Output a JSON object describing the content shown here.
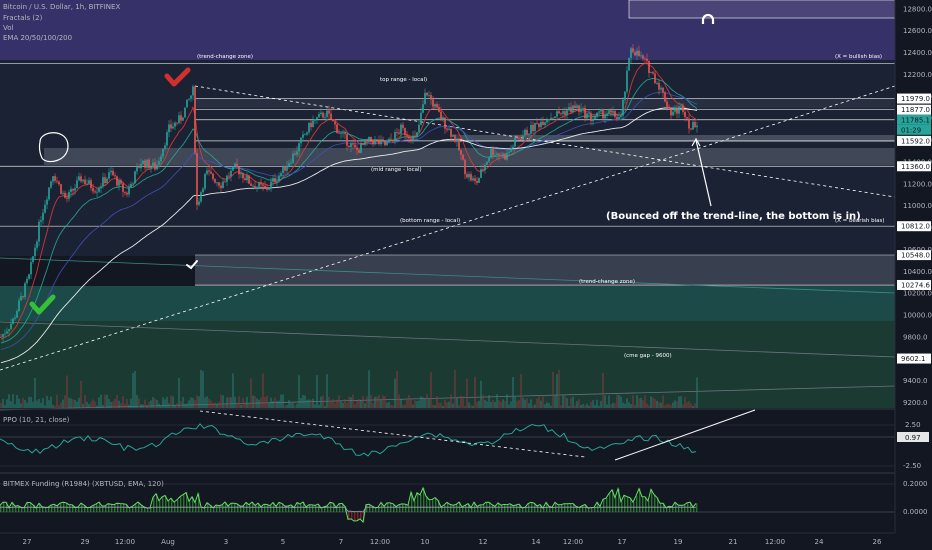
{
  "header": {
    "symbol": "Bitcoin / U.S. Dollar, 1h, BITFINEX",
    "indicators": [
      "Fractals (2)",
      "Vol",
      "EMA 20/50/100/200"
    ]
  },
  "colors": {
    "background": "#131722",
    "purple_zone": "#3a3468",
    "dark_zone": "#1c2233",
    "teal_zone": "#1d4a4a",
    "green_zone": "#1c3d33",
    "up_candle": "#26a69a",
    "down_candle": "#ef5350",
    "ema_red": "#e53935",
    "ema_teal": "#26a69a",
    "ema_blue": "#3f51b5",
    "ema_white": "#ffffff",
    "check_red": "#d32f2f",
    "check_green": "#35c035",
    "funding_line": "#4caf50"
  },
  "chart_data": [
    {
      "type": "candlestick",
      "title": "Bitcoin / U.S. Dollar, 1h, BITFINEX",
      "x_ticks": [
        "27",
        "29",
        "12:00",
        "Aug",
        "3",
        "5",
        "7",
        "12:00",
        "10",
        "12",
        "14",
        "12:00",
        "17",
        "19",
        "21",
        "12:00",
        "24",
        "26"
      ],
      "y_ticks": [
        9200,
        9400,
        9600,
        9800,
        10000,
        10200,
        10400,
        10600,
        10800,
        11000,
        11200,
        11400,
        11600,
        11800,
        12000,
        12200,
        12400,
        12600,
        12800
      ],
      "ylim": [
        9150,
        12880
      ],
      "price_tags": [
        {
          "label": "11979.0",
          "value": 11979
        },
        {
          "label": "11877.0",
          "value": 11877
        },
        {
          "label": "11785.1",
          "value": 11785.1,
          "current": true
        },
        {
          "label": "01:29",
          "value": 11700,
          "current": true
        },
        {
          "label": "11592.0",
          "value": 11592
        },
        {
          "label": "11360.0",
          "value": 11360
        },
        {
          "label": "10812.0",
          "value": 10812
        },
        {
          "label": "10548.0",
          "value": 10548
        },
        {
          "label": "10274.6",
          "value": 10274.6
        },
        {
          "label": "9602.1",
          "value": 9602.1
        }
      ],
      "levels": [
        12300,
        11979,
        11877,
        11785,
        11592,
        11360,
        10812,
        10548,
        10274
      ],
      "annotations": [
        {
          "text": "(trend-change zone)"
        },
        {
          "text": "(X = bullish bias)"
        },
        {
          "text": "top range - local)"
        },
        {
          "text": "(mid range - local)"
        },
        {
          "text": "(bottom range - local)"
        },
        {
          "text": "(X = bearish bias)"
        },
        {
          "text": "(trend-change zone)"
        },
        {
          "text": "(cme gap - 9600)"
        },
        {
          "text": "(Bounced off the trend-line, the bottom is in)"
        }
      ],
      "price_path": [
        {
          "t": 0,
          "p": 9800
        },
        {
          "t": 12,
          "p": 9950
        },
        {
          "t": 28,
          "p": 10350
        },
        {
          "t": 40,
          "p": 10900
        },
        {
          "t": 52,
          "p": 11300
        },
        {
          "t": 65,
          "p": 11050
        },
        {
          "t": 80,
          "p": 11250
        },
        {
          "t": 95,
          "p": 11150
        },
        {
          "t": 110,
          "p": 11300
        },
        {
          "t": 125,
          "p": 11100
        },
        {
          "t": 140,
          "p": 11400
        },
        {
          "t": 155,
          "p": 11350
        },
        {
          "t": 168,
          "p": 11700
        },
        {
          "t": 180,
          "p": 11800
        },
        {
          "t": 192,
          "p": 12050
        },
        {
          "t": 196,
          "p": 11000
        },
        {
          "t": 205,
          "p": 11300
        },
        {
          "t": 220,
          "p": 11200
        },
        {
          "t": 235,
          "p": 11350
        },
        {
          "t": 250,
          "p": 11200
        },
        {
          "t": 265,
          "p": 11150
        },
        {
          "t": 280,
          "p": 11300
        },
        {
          "t": 295,
          "p": 11500
        },
        {
          "t": 310,
          "p": 11750
        },
        {
          "t": 325,
          "p": 11850
        },
        {
          "t": 340,
          "p": 11650
        },
        {
          "t": 355,
          "p": 11500
        },
        {
          "t": 370,
          "p": 11600
        },
        {
          "t": 385,
          "p": 11550
        },
        {
          "t": 400,
          "p": 11700
        },
        {
          "t": 415,
          "p": 11600
        },
        {
          "t": 425,
          "p": 12050
        },
        {
          "t": 440,
          "p": 11800
        },
        {
          "t": 455,
          "p": 11600
        },
        {
          "t": 465,
          "p": 11300
        },
        {
          "t": 475,
          "p": 11200
        },
        {
          "t": 490,
          "p": 11500
        },
        {
          "t": 505,
          "p": 11450
        },
        {
          "t": 515,
          "p": 11600
        },
        {
          "t": 530,
          "p": 11700
        },
        {
          "t": 545,
          "p": 11800
        },
        {
          "t": 560,
          "p": 11850
        },
        {
          "t": 575,
          "p": 11900
        },
        {
          "t": 590,
          "p": 11800
        },
        {
          "t": 605,
          "p": 11850
        },
        {
          "t": 620,
          "p": 11800
        },
        {
          "t": 630,
          "p": 12450
        },
        {
          "t": 645,
          "p": 12300
        },
        {
          "t": 658,
          "p": 12100
        },
        {
          "t": 670,
          "p": 11850
        },
        {
          "t": 682,
          "p": 11900
        },
        {
          "t": 690,
          "p": 11700
        },
        {
          "t": 697,
          "p": 11785
        }
      ]
    },
    {
      "type": "line",
      "title": "PPO (10, 21, close)",
      "y_ticks": [
        "2.50",
        "-2.50"
      ],
      "current_tag": "0.97",
      "ylim": [
        -4,
        4
      ]
    },
    {
      "type": "area",
      "title": "BITMEX Funding (R1984) (XBTUSD, EMA, 120)",
      "y_ticks": [
        "0.2000",
        "0.0000"
      ],
      "ylim": [
        -0.1,
        0.22
      ]
    }
  ]
}
